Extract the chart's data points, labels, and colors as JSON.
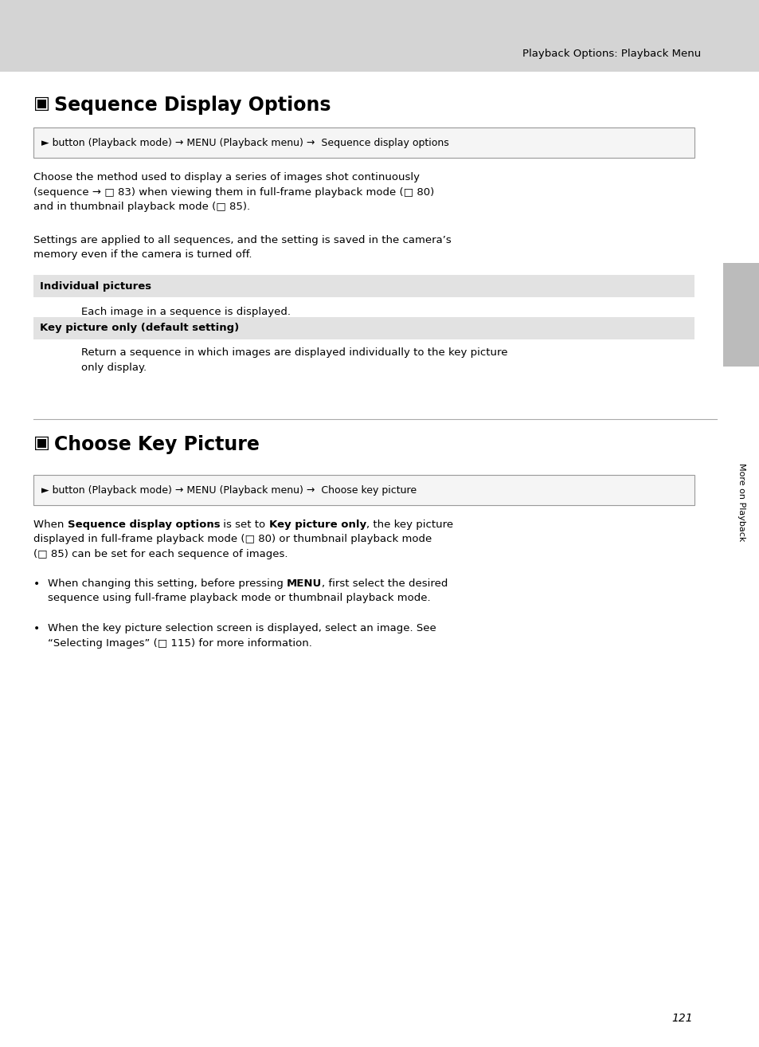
{
  "page_bg": "#ffffff",
  "header_bg": "#d4d4d4",
  "header_text": "Playback Options: Playback Menu",
  "header_text_color": "#000000",
  "sidebar_bg": "#bbbbbb",
  "sidebar_text": "More on Playback",
  "page_number": "121",
  "section1_title": "Sequence Display Options",
  "section1_box_text": "► button (Playback mode) → MENU (Playback menu) →  Sequence display options",
  "section1_para1": "Choose the method used to display a series of images shot continuously\n(sequence → □ 83) when viewing them in full-frame playback mode (□ 80)\nand in thumbnail playback mode (□ 85).",
  "section1_para2": "Settings are applied to all sequences, and the setting is saved in the camera’s\nmemory even if the camera is turned off.",
  "row1_label": "Individual pictures",
  "row1_desc": "Each image in a sequence is displayed.",
  "row2_label": "Key picture only (default setting)",
  "row2_desc": "Return a sequence in which images are displayed individually to the key picture\nonly display.",
  "section2_title": "Choose Key Picture",
  "section2_box_text": "► button (Playback mode) → MENU (Playback menu) →  Choose key picture",
  "bullet2_text": "When the key picture selection screen is displayed, select an image. See\n“Selecting Images” (□ 115) for more information.",
  "text_color": "#000000",
  "box_border_color": "#999999",
  "row_bg_color": "#e2e2e2"
}
